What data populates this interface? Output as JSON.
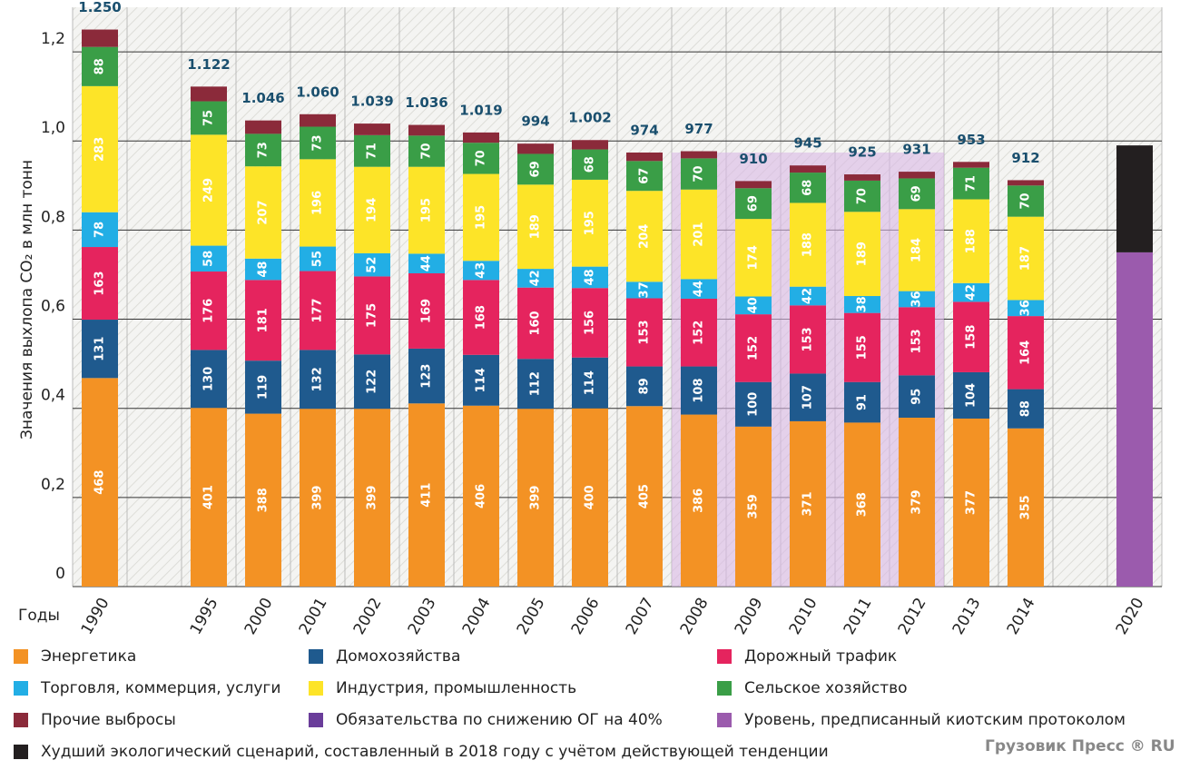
{
  "chart_data": {
    "type": "bar",
    "stacked": true,
    "ylabel": "Значения выхлопа CO₂ в млн тонн",
    "xlabel": "Годы",
    "watermark": "Грузовик Пресс ® RU",
    "categories": [
      "1990",
      null,
      "1995",
      "2000",
      "2001",
      "2002",
      "2003",
      "2004",
      "2005",
      "2006",
      "2007",
      "2008",
      "2009",
      "2010",
      "2011",
      "2012",
      "2013",
      "2014",
      null,
      "2020"
    ],
    "ylim": [
      0,
      1.3
    ],
    "yticks": [
      0,
      {
        "value": 0.2,
        "label": "0,2"
      },
      {
        "value": 0.4,
        "label": "0,4"
      },
      {
        "value": 0.6,
        "label": "0,6"
      },
      {
        "value": 0.8,
        "label": "0,8"
      },
      {
        "value": 1.0,
        "label": "1,0"
      },
      {
        "value": 1.2,
        "label": "1,2"
      }
    ],
    "grid": true,
    "series": [
      {
        "name": "Энергетика",
        "color": "#f39224",
        "values": [
          0.468,
          null,
          0.401,
          0.388,
          0.399,
          0.399,
          0.411,
          0.406,
          0.399,
          0.4,
          0.405,
          0.386,
          0.359,
          0.371,
          0.368,
          0.379,
          0.377,
          0.355,
          null,
          null
        ],
        "value_labels": [
          "468",
          null,
          "401",
          "388",
          "399",
          "399",
          "411",
          "406",
          "399",
          "400",
          "405",
          "386",
          "359",
          "371",
          "368",
          "379",
          "377",
          "355",
          null,
          null
        ]
      },
      {
        "name": "Домохозяйства",
        "color": "#1f5a8e",
        "values": [
          0.131,
          null,
          0.13,
          0.119,
          0.132,
          0.122,
          0.123,
          0.114,
          0.112,
          0.114,
          0.089,
          0.108,
          0.1,
          0.107,
          0.091,
          0.095,
          0.104,
          0.088,
          null,
          null
        ],
        "value_labels": [
          "131",
          null,
          "130",
          "119",
          "132",
          "122",
          "123",
          "114",
          "112",
          "114",
          "89",
          "108",
          "100",
          "107",
          "91",
          "95",
          "104",
          "88",
          null,
          null
        ]
      },
      {
        "name": "Дорожный трафик",
        "color": "#e5245e",
        "values": [
          0.163,
          null,
          0.176,
          0.181,
          0.177,
          0.175,
          0.169,
          0.168,
          0.16,
          0.156,
          0.153,
          0.152,
          0.152,
          0.153,
          0.155,
          0.153,
          0.158,
          0.164,
          null,
          null
        ],
        "value_labels": [
          "163",
          null,
          "176",
          "181",
          "177",
          "175",
          "169",
          "168",
          "160",
          "156",
          "153",
          "152",
          "152",
          "153",
          "155",
          "153",
          "158",
          "164",
          null,
          null
        ]
      },
      {
        "name": "Торговля, коммерция, услуги",
        "color": "#22aee5",
        "values": [
          0.078,
          null,
          0.058,
          0.048,
          0.055,
          0.052,
          0.044,
          0.043,
          0.042,
          0.048,
          0.037,
          0.044,
          0.04,
          0.042,
          0.038,
          0.036,
          0.042,
          0.036,
          null,
          null
        ],
        "value_labels": [
          "78",
          null,
          "58",
          "48",
          "55",
          "52",
          "44",
          "43",
          "42",
          "48",
          "37",
          "44",
          "40",
          "42",
          "38",
          "36",
          "42",
          "36",
          null,
          null
        ]
      },
      {
        "name": "Индустрия, промышленность",
        "color": "#fde428",
        "values": [
          0.283,
          null,
          0.249,
          0.207,
          0.196,
          0.194,
          0.195,
          0.195,
          0.189,
          0.195,
          0.204,
          0.201,
          0.174,
          0.188,
          0.189,
          0.184,
          0.188,
          0.187,
          null,
          null
        ],
        "value_labels": [
          "283",
          null,
          "249",
          "207",
          "196",
          "194",
          "195",
          "195",
          "189",
          "195",
          "204",
          "201",
          "174",
          "188",
          "189",
          "184",
          "188",
          "187",
          null,
          null
        ]
      },
      {
        "name": "Сельское хозяйство",
        "color": "#3a9e47",
        "values": [
          0.088,
          null,
          0.075,
          0.073,
          0.073,
          0.071,
          0.07,
          0.07,
          0.069,
          0.068,
          0.067,
          0.07,
          0.069,
          0.068,
          0.07,
          0.069,
          0.071,
          0.07,
          null,
          null
        ],
        "value_labels": [
          "88",
          null,
          "75",
          "73",
          "73",
          "71",
          "70",
          "70",
          "69",
          "68",
          "67",
          "70",
          "69",
          "68",
          "70",
          "69",
          "71",
          "70",
          null,
          null
        ]
      },
      {
        "name": "Прочие выбросы",
        "color": "#8b2a3a",
        "values": [
          0.039,
          null,
          0.033,
          0.03,
          0.028,
          0.026,
          0.024,
          0.023,
          0.023,
          0.021,
          0.019,
          0.016,
          0.016,
          0.016,
          0.014,
          0.015,
          0.013,
          0.012,
          null,
          null
        ]
      },
      {
        "name": "Обязательства по снижению ОГ на 40%",
        "color": "#6a3d9a",
        "values": [
          null,
          null,
          null,
          null,
          null,
          null,
          null,
          null,
          null,
          null,
          null,
          null,
          null,
          null,
          null,
          null,
          null,
          null,
          null,
          null
        ]
      },
      {
        "name": "Уровень, предписанный киотским протоколом",
        "color": "#9b5bad",
        "values": [
          null,
          null,
          null,
          null,
          null,
          null,
          null,
          null,
          null,
          null,
          null,
          null,
          null,
          null,
          null,
          null,
          null,
          null,
          null,
          0.75
        ]
      },
      {
        "name": "Худший экологический сценарий, составленный в 2018 году с учётом действующей тенденции",
        "color": "#231f20",
        "values": [
          null,
          null,
          null,
          null,
          null,
          null,
          null,
          null,
          null,
          null,
          null,
          null,
          null,
          null,
          null,
          null,
          null,
          null,
          null,
          0.24
        ]
      }
    ],
    "totals": {
      "color": "#1a4f6e",
      "values": [
        1.25,
        null,
        1.122,
        1.046,
        1.06,
        1.039,
        1.036,
        1.019,
        0.994,
        1.002,
        0.974,
        0.977,
        0.91,
        0.945,
        0.925,
        0.931,
        0.953,
        0.912,
        null,
        null
      ],
      "labels": [
        "1.250",
        null,
        "1.122",
        "1.046",
        "1.060",
        "1.039",
        "1.036",
        "1.019",
        "994",
        "1.002",
        "974",
        "977",
        "910",
        "945",
        "925",
        "931",
        "953",
        "912",
        null,
        null
      ]
    }
  }
}
